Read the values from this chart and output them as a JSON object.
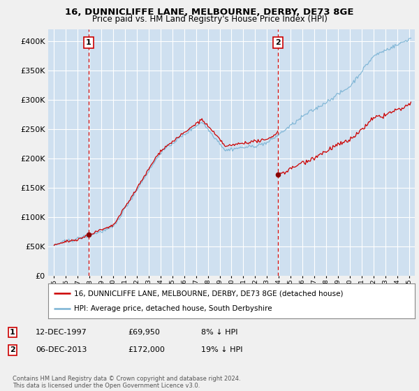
{
  "title": "16, DUNNICLIFFE LANE, MELBOURNE, DERBY, DE73 8GE",
  "subtitle": "Price paid vs. HM Land Registry's House Price Index (HPI)",
  "legend_line1": "16, DUNNICLIFFE LANE, MELBOURNE, DERBY, DE73 8GE (detached house)",
  "legend_line2": "HPI: Average price, detached house, South Derbyshire",
  "annotation1_label": "1",
  "annotation1_date": "12-DEC-1997",
  "annotation1_price": "£69,950",
  "annotation1_hpi": "8% ↓ HPI",
  "annotation2_label": "2",
  "annotation2_date": "06-DEC-2013",
  "annotation2_price": "£172,000",
  "annotation2_hpi": "19% ↓ HPI",
  "footer": "Contains HM Land Registry data © Crown copyright and database right 2024.\nThis data is licensed under the Open Government Licence v3.0.",
  "sale1_year": 1997.92,
  "sale1_value": 69950,
  "sale2_year": 2013.92,
  "sale2_value": 172000,
  "hpi_color": "#7ab3d4",
  "price_color": "#cc0000",
  "sale_dot_color": "#8b0000",
  "dashed_line_color": "#cc0000",
  "background_color": "#f0f0f0",
  "plot_bg_color": "#cfe0f0",
  "grid_color": "#ffffff",
  "ylim": [
    0,
    420000
  ],
  "yticks": [
    0,
    50000,
    100000,
    150000,
    200000,
    250000,
    300000,
    350000,
    400000
  ],
  "xlim_start": 1994.5,
  "xlim_end": 2025.5
}
